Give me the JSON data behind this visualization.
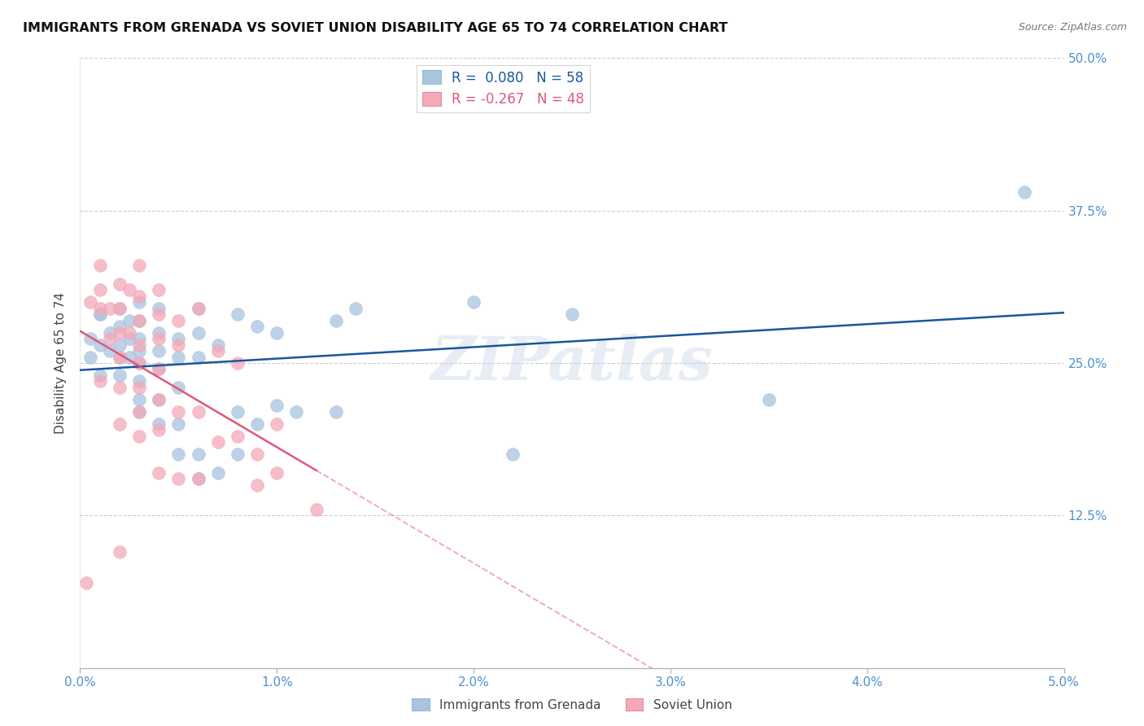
{
  "title": "IMMIGRANTS FROM GRENADA VS SOVIET UNION DISABILITY AGE 65 TO 74 CORRELATION CHART",
  "source": "Source: ZipAtlas.com",
  "ylabel": "Disability Age 65 to 74",
  "xmin": 0.0,
  "xmax": 0.05,
  "ymin": 0.0,
  "ymax": 0.5,
  "xticks": [
    0.0,
    0.01,
    0.02,
    0.03,
    0.04,
    0.05
  ],
  "xtick_labels": [
    "0.0%",
    "1.0%",
    "2.0%",
    "3.0%",
    "4.0%",
    "5.0%"
  ],
  "yticks": [
    0.0,
    0.125,
    0.25,
    0.375,
    0.5
  ],
  "ytick_labels": [
    "",
    "12.5%",
    "25.0%",
    "37.5%",
    "50.0%"
  ],
  "grenada_R": 0.08,
  "grenada_N": 58,
  "soviet_R": -0.267,
  "soviet_N": 48,
  "grenada_color": "#a8c4e0",
  "soviet_color": "#f4a8b8",
  "grenada_line_color": "#1a56a0",
  "soviet_line_color": "#e05878",
  "tick_color": "#5090d0",
  "watermark": "ZIPatlas",
  "grenada_x": [
    0.0005,
    0.0005,
    0.001,
    0.001,
    0.001,
    0.001,
    0.0015,
    0.0015,
    0.002,
    0.002,
    0.002,
    0.002,
    0.002,
    0.0025,
    0.0025,
    0.0025,
    0.003,
    0.003,
    0.003,
    0.003,
    0.003,
    0.003,
    0.003,
    0.003,
    0.004,
    0.004,
    0.004,
    0.004,
    0.004,
    0.004,
    0.005,
    0.005,
    0.005,
    0.005,
    0.005,
    0.006,
    0.006,
    0.006,
    0.006,
    0.006,
    0.007,
    0.007,
    0.008,
    0.008,
    0.008,
    0.009,
    0.009,
    0.01,
    0.01,
    0.011,
    0.013,
    0.013,
    0.014,
    0.02,
    0.022,
    0.025,
    0.035,
    0.048
  ],
  "grenada_y": [
    0.27,
    0.255,
    0.29,
    0.265,
    0.24,
    0.29,
    0.275,
    0.26,
    0.295,
    0.28,
    0.265,
    0.255,
    0.24,
    0.285,
    0.27,
    0.255,
    0.3,
    0.285,
    0.27,
    0.26,
    0.25,
    0.235,
    0.22,
    0.21,
    0.295,
    0.275,
    0.26,
    0.245,
    0.22,
    0.2,
    0.27,
    0.255,
    0.23,
    0.2,
    0.175,
    0.295,
    0.275,
    0.255,
    0.175,
    0.155,
    0.265,
    0.16,
    0.29,
    0.21,
    0.175,
    0.28,
    0.2,
    0.275,
    0.215,
    0.21,
    0.285,
    0.21,
    0.295,
    0.3,
    0.175,
    0.29,
    0.22,
    0.39
  ],
  "soviet_x": [
    0.0003,
    0.0005,
    0.001,
    0.001,
    0.001,
    0.001,
    0.0015,
    0.0015,
    0.002,
    0.002,
    0.002,
    0.002,
    0.002,
    0.002,
    0.002,
    0.0025,
    0.0025,
    0.003,
    0.003,
    0.003,
    0.003,
    0.003,
    0.003,
    0.003,
    0.003,
    0.004,
    0.004,
    0.004,
    0.004,
    0.004,
    0.004,
    0.004,
    0.005,
    0.005,
    0.005,
    0.005,
    0.006,
    0.006,
    0.006,
    0.007,
    0.007,
    0.008,
    0.008,
    0.009,
    0.009,
    0.01,
    0.01,
    0.012
  ],
  "soviet_y": [
    0.07,
    0.3,
    0.33,
    0.31,
    0.295,
    0.235,
    0.295,
    0.27,
    0.315,
    0.295,
    0.275,
    0.255,
    0.23,
    0.2,
    0.095,
    0.31,
    0.275,
    0.33,
    0.305,
    0.285,
    0.265,
    0.25,
    0.23,
    0.21,
    0.19,
    0.31,
    0.29,
    0.27,
    0.245,
    0.22,
    0.195,
    0.16,
    0.285,
    0.265,
    0.21,
    0.155,
    0.295,
    0.21,
    0.155,
    0.26,
    0.185,
    0.25,
    0.19,
    0.175,
    0.15,
    0.2,
    0.16,
    0.13
  ]
}
